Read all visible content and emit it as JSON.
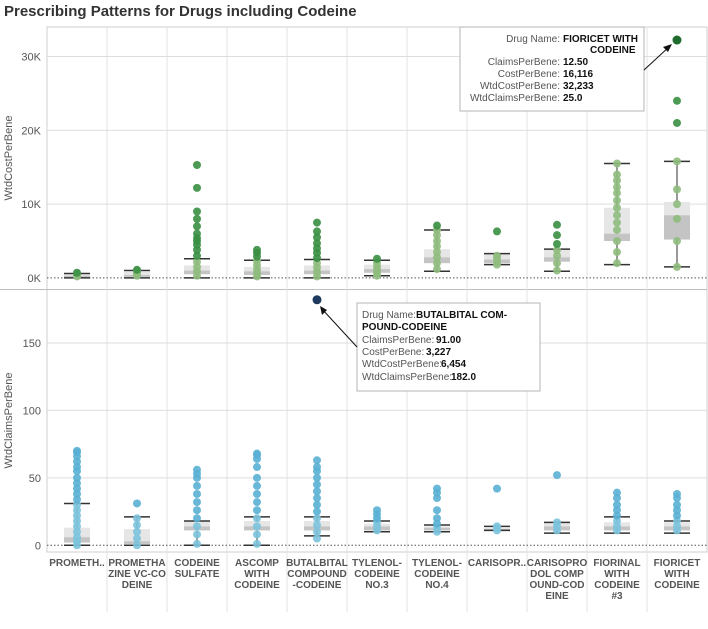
{
  "title": "Prescribing Patterns for Drugs including Codeine",
  "colors": {
    "top_points": "#8fbc7e",
    "top_outliers": "#3a8f43",
    "top_max": "#1f6b2e",
    "bottom_points": "#7cc3dd",
    "bottom_outliers": "#5ab0d4",
    "bottom_max": "#1e3a5f",
    "box_light": "#e6e6e6",
    "box_dark": "#c4c4c4",
    "whisker": "#333333",
    "grid": "#dddddd"
  },
  "chart_data": {
    "type": "box",
    "categories": [
      {
        "label_lines": [
          "PROMETH.."
        ]
      },
      {
        "label_lines": [
          "PROMETHA",
          "ZINE VC-CO",
          "DEINE"
        ]
      },
      {
        "label_lines": [
          "CODEINE",
          "SULFATE"
        ]
      },
      {
        "label_lines": [
          "ASCOMP",
          "WITH",
          "CODEINE"
        ]
      },
      {
        "label_lines": [
          "BUTALBITAL",
          "COMPOUND",
          "-CODEINE"
        ]
      },
      {
        "label_lines": [
          "TYLENOL-",
          "CODEINE",
          "NO.3"
        ]
      },
      {
        "label_lines": [
          "TYLENOL-",
          "CODEINE",
          "NO.4"
        ]
      },
      {
        "label_lines": [
          "CARISOPR.."
        ]
      },
      {
        "label_lines": [
          "CARISOPRO",
          "DOL COMP",
          "OUND-COD",
          "EINE"
        ]
      },
      {
        "label_lines": [
          "FIORINAL",
          "WITH",
          "CODEINE",
          "#3"
        ]
      },
      {
        "label_lines": [
          "FIORICET",
          "WITH",
          "CODEINE"
        ]
      }
    ],
    "panels": [
      {
        "ylabel": "WtdCostPerBene",
        "ylim": [
          -1500,
          34000
        ],
        "yticks": [
          0,
          10000,
          20000,
          30000
        ],
        "ytick_labels": [
          "0K",
          "10K",
          "20K",
          "30K"
        ],
        "boxes": [
          {
            "min": 0,
            "q1": 100,
            "median": 300,
            "q3": 500,
            "max": 600
          },
          {
            "min": 0,
            "q1": 150,
            "median": 400,
            "q3": 800,
            "max": 1000
          },
          {
            "min": 0,
            "q1": 500,
            "median": 1000,
            "q3": 1700,
            "max": 2600
          },
          {
            "min": 0,
            "q1": 400,
            "median": 900,
            "q3": 1500,
            "max": 2400
          },
          {
            "min": 0,
            "q1": 500,
            "median": 1000,
            "q3": 1700,
            "max": 2500
          },
          {
            "min": 300,
            "q1": 700,
            "median": 1200,
            "q3": 1800,
            "max": 2400
          },
          {
            "min": 900,
            "q1": 2000,
            "median": 2800,
            "q3": 3900,
            "max": 6500
          },
          {
            "min": 1800,
            "q1": 2000,
            "median": 2500,
            "q3": 3300,
            "max": 3300
          },
          {
            "min": 900,
            "q1": 2200,
            "median": 2800,
            "q3": 3900,
            "max": 3900
          },
          {
            "min": 1800,
            "q1": 5000,
            "median": 6000,
            "q3": 9500,
            "max": 15500
          },
          {
            "min": 1500,
            "q1": 5200,
            "median": 8500,
            "q3": 10300,
            "max": 15800
          }
        ],
        "points": [
          [
            200,
            300,
            450,
            600,
            700
          ],
          [
            300,
            500,
            700,
            900,
            1100
          ],
          [
            300,
            900,
            1500,
            2200,
            3000,
            3800,
            4500,
            5000,
            5400,
            6000,
            7000,
            8000,
            9000,
            12200,
            15300
          ],
          [
            200,
            600,
            1100,
            1700,
            2300,
            2900,
            3400,
            3800
          ],
          [
            200,
            800,
            1400,
            2000,
            2700,
            3400,
            4000,
            4700,
            5500,
            6300,
            7500
          ],
          [
            300,
            700,
            1100,
            1600,
            2100,
            2600
          ],
          [
            1200,
            2000,
            2800,
            3500,
            4300,
            5000,
            5800,
            6500,
            7100
          ],
          [
            1800,
            2200,
            2700,
            3000,
            6300
          ],
          [
            1000,
            2000,
            3000,
            3800,
            4600,
            5800,
            7200
          ],
          [
            2000,
            3500,
            5000,
            6500,
            7500,
            8500,
            9500,
            10500,
            11500,
            12300,
            13200,
            14000,
            15500
          ],
          [
            1500,
            5000,
            8000,
            10000,
            12000,
            15800,
            21000,
            24000
          ]
        ],
        "max_point": {
          "category": 10,
          "value": 32233
        }
      },
      {
        "ylabel": "WtdClaimsPerBene",
        "ylim": [
          -5,
          190
        ],
        "yticks": [
          0,
          50,
          100,
          150
        ],
        "ytick_labels": [
          "0",
          "50",
          "100",
          "150"
        ],
        "boxes": [
          {
            "min": 0,
            "q1": 2,
            "median": 6,
            "q3": 13,
            "max": 31
          },
          {
            "min": 0,
            "q1": 1,
            "median": 3,
            "q3": 12,
            "max": 21
          },
          {
            "min": 0,
            "q1": 11,
            "median": 14,
            "q3": 18,
            "max": 18
          },
          {
            "min": 0,
            "q1": 11,
            "median": 14,
            "q3": 18,
            "max": 21
          },
          {
            "min": 7,
            "q1": 11,
            "median": 14,
            "q3": 18,
            "max": 21
          },
          {
            "min": 10,
            "q1": 11,
            "median": 14,
            "q3": 16,
            "max": 18
          },
          {
            "min": 10,
            "q1": 11,
            "median": 13,
            "q3": 14,
            "max": 15
          },
          {
            "min": 11,
            "q1": 11,
            "median": 12,
            "q3": 13,
            "max": 14
          },
          {
            "min": 9,
            "q1": 11,
            "median": 14,
            "q3": 17,
            "max": 17
          },
          {
            "min": 9,
            "q1": 11,
            "median": 14,
            "q3": 17,
            "max": 21
          },
          {
            "min": 9,
            "q1": 11,
            "median": 14,
            "q3": 17,
            "max": 18
          }
        ],
        "points": [
          [
            0,
            3,
            6,
            10,
            14,
            18,
            22,
            26,
            30,
            34,
            38,
            42,
            46,
            50,
            55,
            58,
            62,
            66,
            69,
            70
          ],
          [
            0,
            5,
            10,
            15,
            20,
            31
          ],
          [
            1,
            8,
            14,
            20,
            26,
            32,
            38,
            44,
            50,
            53,
            56
          ],
          [
            1,
            8,
            14,
            20,
            26,
            32,
            38,
            44,
            50,
            58,
            64,
            67,
            68
          ],
          [
            5,
            10,
            15,
            20,
            25,
            30,
            35,
            40,
            45,
            50,
            55,
            58,
            63
          ],
          [
            11,
            14,
            17,
            20,
            23,
            26
          ],
          [
            10,
            13,
            16,
            20,
            26,
            35,
            39,
            42
          ],
          [
            11,
            13,
            14,
            42
          ],
          [
            11,
            14,
            17,
            52
          ],
          [
            11,
            14,
            18,
            22,
            26,
            30,
            35,
            39
          ],
          [
            11,
            14,
            18,
            22,
            26,
            30,
            35,
            38
          ]
        ],
        "max_point": {
          "category": 4,
          "value": 182
        }
      }
    ]
  },
  "tooltips": [
    {
      "rows": [
        {
          "label": "Drug Name:",
          "value": "FIORICET WITH"
        },
        {
          "label": "",
          "value": "CODEINE"
        },
        {
          "label": "ClaimsPerBene:",
          "value": "12.50"
        },
        {
          "label": "CostPerBene:",
          "value": "16,116"
        },
        {
          "label": "WtdCostPerBene:",
          "value": "32,233"
        },
        {
          "label": "WtdClaimsPerBene:",
          "value": "25.0"
        }
      ]
    },
    {
      "rows": [
        {
          "label": "Drug Name:",
          "value": "BUTALBITAL COM-"
        },
        {
          "label": "",
          "value": "POUND-CODEINE"
        },
        {
          "label": "ClaimsPerBene:",
          "value": "91.00"
        },
        {
          "label": "CostPerBene:",
          "value": "3,227"
        },
        {
          "label": "WtdCostPerBene:",
          "value": "6,454"
        },
        {
          "label": "WtdClaimsPerBene:",
          "value": "182.0"
        }
      ]
    }
  ]
}
